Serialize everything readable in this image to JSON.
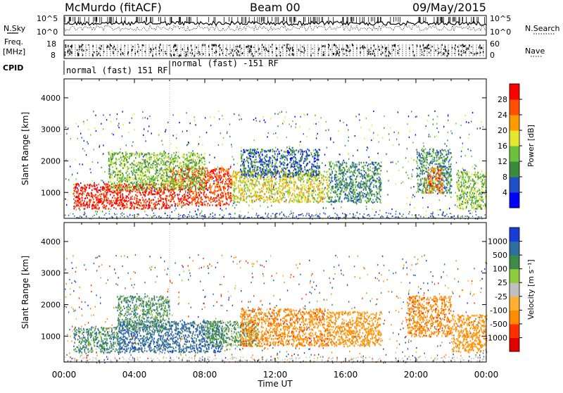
{
  "header": {
    "title": "McMurdo (fitACF)",
    "beam": "Beam 00",
    "date": "09/May/2015"
  },
  "side_labels": {
    "nsky": "N.Sky",
    "freq": "Freq.",
    "freq_unit": "[MHz]",
    "cpid": "CPID",
    "nsearch": "N.Search",
    "nave": "Nave"
  },
  "noise_axis": {
    "left_top": "10^5",
    "left_bottom": "10^0",
    "right_top": "10^5",
    "right_bottom": "10^0"
  },
  "freq_axis": {
    "left_top": "18",
    "left_bottom": "8",
    "right_top": "60",
    "right_bottom": "0"
  },
  "cpid_segments": [
    {
      "label": "normal (fast) 151 RF",
      "start_hour": 0,
      "end_hour": 6.0
    },
    {
      "label": "normal (fast) -151 RF",
      "start_hour": 6.0,
      "end_hour": 24
    }
  ],
  "chart_data": [
    {
      "type": "heatmap",
      "panel": "power",
      "xlabel": "",
      "ylabel": "Slant Range [km]",
      "xlim": [
        0,
        24
      ],
      "ylim": [
        180,
        4600
      ],
      "yticks": [
        1000,
        2000,
        3000,
        4000
      ],
      "colorbar": {
        "label": "Power [dB]",
        "ticks": [
          "4",
          "8",
          "12",
          "16",
          "20",
          "24",
          "28"
        ],
        "colors": [
          "#0000ff",
          "#2050c8",
          "#3c8a3c",
          "#6cc23c",
          "#e6e632",
          "#ff9a00",
          "#ff5000",
          "#ff0000"
        ],
        "range": [
          0,
          32
        ]
      },
      "echo_regions": [
        {
          "t0": 0.5,
          "t1": 6.0,
          "r0": 500,
          "r1": 1300,
          "value": 30
        },
        {
          "t0": 6.0,
          "t1": 9.5,
          "r0": 600,
          "r1": 1800,
          "value": 28
        },
        {
          "t0": 2.5,
          "t1": 8.0,
          "r0": 1100,
          "r1": 2300,
          "value": 14
        },
        {
          "t0": 9.5,
          "t1": 15.0,
          "r0": 700,
          "r1": 1700,
          "value": 18
        },
        {
          "t0": 10.0,
          "t1": 14.5,
          "r0": 1500,
          "r1": 2400,
          "value": 8
        },
        {
          "t0": 15.0,
          "t1": 18.0,
          "r0": 700,
          "r1": 2000,
          "value": 10
        },
        {
          "t0": 20.0,
          "t1": 22.0,
          "r0": 1000,
          "r1": 2400,
          "value": 10
        },
        {
          "t0": 20.5,
          "t1": 21.5,
          "r0": 1000,
          "r1": 1800,
          "value": 24
        },
        {
          "t0": 22.3,
          "t1": 24.0,
          "r0": 500,
          "r1": 1700,
          "value": 14
        }
      ]
    },
    {
      "type": "heatmap",
      "panel": "velocity",
      "xlabel": "Time UT",
      "ylabel": "Slant Range [km]",
      "xlim": [
        0,
        24
      ],
      "ylim": [
        180,
        4600
      ],
      "xticks": [
        "00:00",
        "04:00",
        "08:00",
        "12:00",
        "16:00",
        "20:00",
        "00:00"
      ],
      "yticks": [
        1000,
        2000,
        3000,
        4000
      ],
      "colorbar": {
        "label": "Velocity [m s⁻¹]",
        "ticks": [
          "1000",
          "500",
          "100",
          "25",
          "-25",
          "-100",
          "-500",
          "-1000"
        ],
        "colors": [
          "#1a3cd6",
          "#2e6ea0",
          "#3d8a4a",
          "#8ccc3c",
          "#c0c0c0",
          "#ffb030",
          "#ff8c00",
          "#ff3000",
          "#e00000"
        ]
      },
      "echo_regions": [
        {
          "t0": 0.5,
          "t1": 3.0,
          "r0": 500,
          "r1": 1300,
          "value": 80
        },
        {
          "t0": 3.0,
          "t1": 9.0,
          "r0": 500,
          "r1": 1500,
          "value": 300
        },
        {
          "t0": 3.0,
          "t1": 6.0,
          "r0": 1200,
          "r1": 2300,
          "value": 60
        },
        {
          "t0": 8.0,
          "t1": 11.0,
          "r0": 700,
          "r1": 1500,
          "value": 40
        },
        {
          "t0": 10.0,
          "t1": 15.0,
          "r0": 700,
          "r1": 1900,
          "value": -300
        },
        {
          "t0": 15.0,
          "t1": 18.0,
          "r0": 700,
          "r1": 1800,
          "value": -200
        },
        {
          "t0": 19.5,
          "t1": 22.0,
          "r0": 1000,
          "r1": 2300,
          "value": -300
        },
        {
          "t0": 22.0,
          "t1": 24.0,
          "r0": 500,
          "r1": 1700,
          "value": -200
        }
      ]
    }
  ]
}
